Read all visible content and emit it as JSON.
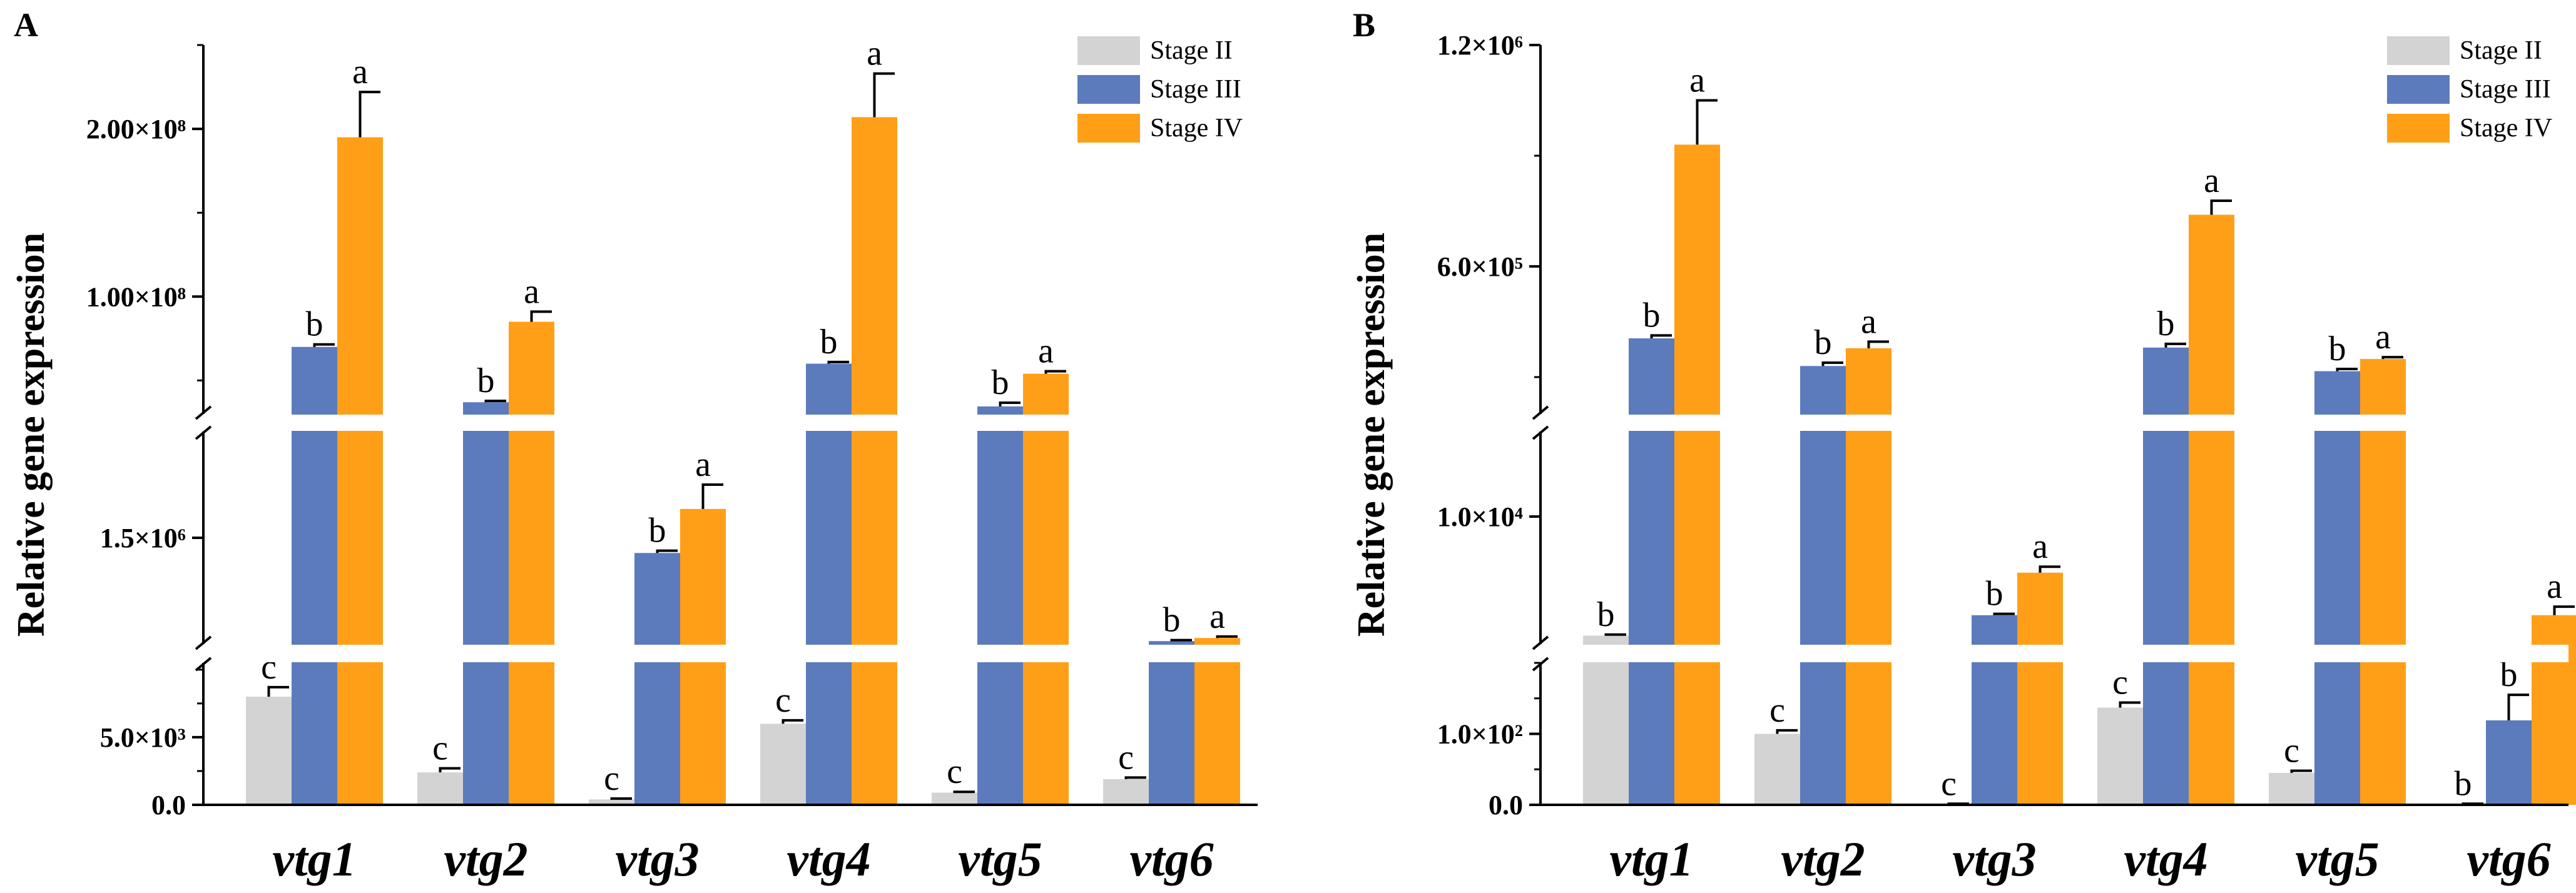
{
  "colors": {
    "Stage II": "#d3d3d3",
    "Stage III": "#5b7bbd",
    "Stage IV": "#ff9f18"
  },
  "chart_data": [
    {
      "panel": "A",
      "type": "bar",
      "ylabel": "Relative gene expression",
      "categories": [
        "vtg1",
        "vtg2",
        "vtg3",
        "vtg4",
        "vtg5",
        "vtg6"
      ],
      "segments": [
        {
          "range": [
            0,
            10500
          ],
          "ticks": [
            0,
            5000
          ],
          "tick_labels": [
            "0.0",
            "5.0×10³"
          ]
        },
        {
          "range": [
            800000,
            2200000
          ],
          "ticks": [
            1500000
          ],
          "tick_labels": [
            "1.5×10⁶"
          ]
        },
        {
          "range": [
            30000000,
            250000000
          ],
          "ticks": [
            100000000,
            200000000
          ],
          "tick_labels": [
            "1.00×10⁸",
            "2.00×10⁸"
          ]
        }
      ],
      "series": [
        {
          "name": "Stage II",
          "values": [
            8000,
            2400,
            400,
            6000,
            900,
            1900
          ],
          "errors": [
            700,
            300,
            60,
            250,
            60,
            120
          ],
          "letters": [
            "c",
            "c",
            "c",
            "c",
            "c",
            "c"
          ]
        },
        {
          "name": "Stage III",
          "values": [
            70000000,
            37000000,
            1400000,
            60000000,
            34500000,
            820000
          ],
          "errors": [
            1500000,
            800000,
            15000,
            1000000,
            2200000,
            6000
          ],
          "letters": [
            "b",
            "b",
            "b",
            "b",
            "b",
            "b"
          ]
        },
        {
          "name": "Stage IV",
          "values": [
            195000000,
            85000000,
            1690000,
            207000000,
            54000000,
            840000
          ],
          "errors": [
            27000000,
            6000000,
            160000,
            26000000,
            1500000,
            10000
          ],
          "letters": [
            "a",
            "a",
            "a",
            "a",
            "a",
            "a"
          ]
        }
      ]
    },
    {
      "panel": "B",
      "type": "bar",
      "ylabel": "Relative gene expression",
      "categories": [
        "vtg1",
        "vtg2",
        "vtg3",
        "vtg4",
        "vtg5",
        "vtg6"
      ],
      "segments": [
        {
          "range": [
            0,
            200
          ],
          "ticks": [
            0,
            100
          ],
          "tick_labels": [
            "0.0",
            "1.0×10²"
          ]
        },
        {
          "range": [
            2500,
            15000
          ],
          "ticks": [
            10000
          ],
          "tick_labels": [
            "1.0×10⁴"
          ]
        },
        {
          "range": [
            200000,
            1200000
          ],
          "ticks": [
            600000,
            1200000
          ],
          "tick_labels": [
            "6.0×10⁵",
            "1.2×10⁶"
          ]
        }
      ],
      "series": [
        {
          "name": "Stage II",
          "values": [
            3000,
            100,
            1,
            137,
            45,
            1
          ],
          "errors": [
            60,
            5,
            0.5,
            7,
            3,
            0.5
          ],
          "letters": [
            "b",
            "c",
            "c",
            "c",
            "c",
            "b"
          ]
        },
        {
          "name": "Stage III",
          "values": [
            405000,
            330000,
            4200,
            380000,
            316000,
            119
          ],
          "errors": [
            8000,
            9000,
            80,
            10000,
            6000,
            36
          ],
          "letters": [
            "b",
            "b",
            "b",
            "b",
            "b",
            "b"
          ]
        },
        {
          "name": "Stage IV",
          "values": [
            930000,
            378000,
            6700,
            740000,
            349000,
            4200
          ],
          "errors": [
            120000,
            18000,
            350,
            38000,
            5000,
            500
          ],
          "letters": [
            "a",
            "a",
            "a",
            "a",
            "a",
            "a"
          ]
        }
      ]
    }
  ]
}
